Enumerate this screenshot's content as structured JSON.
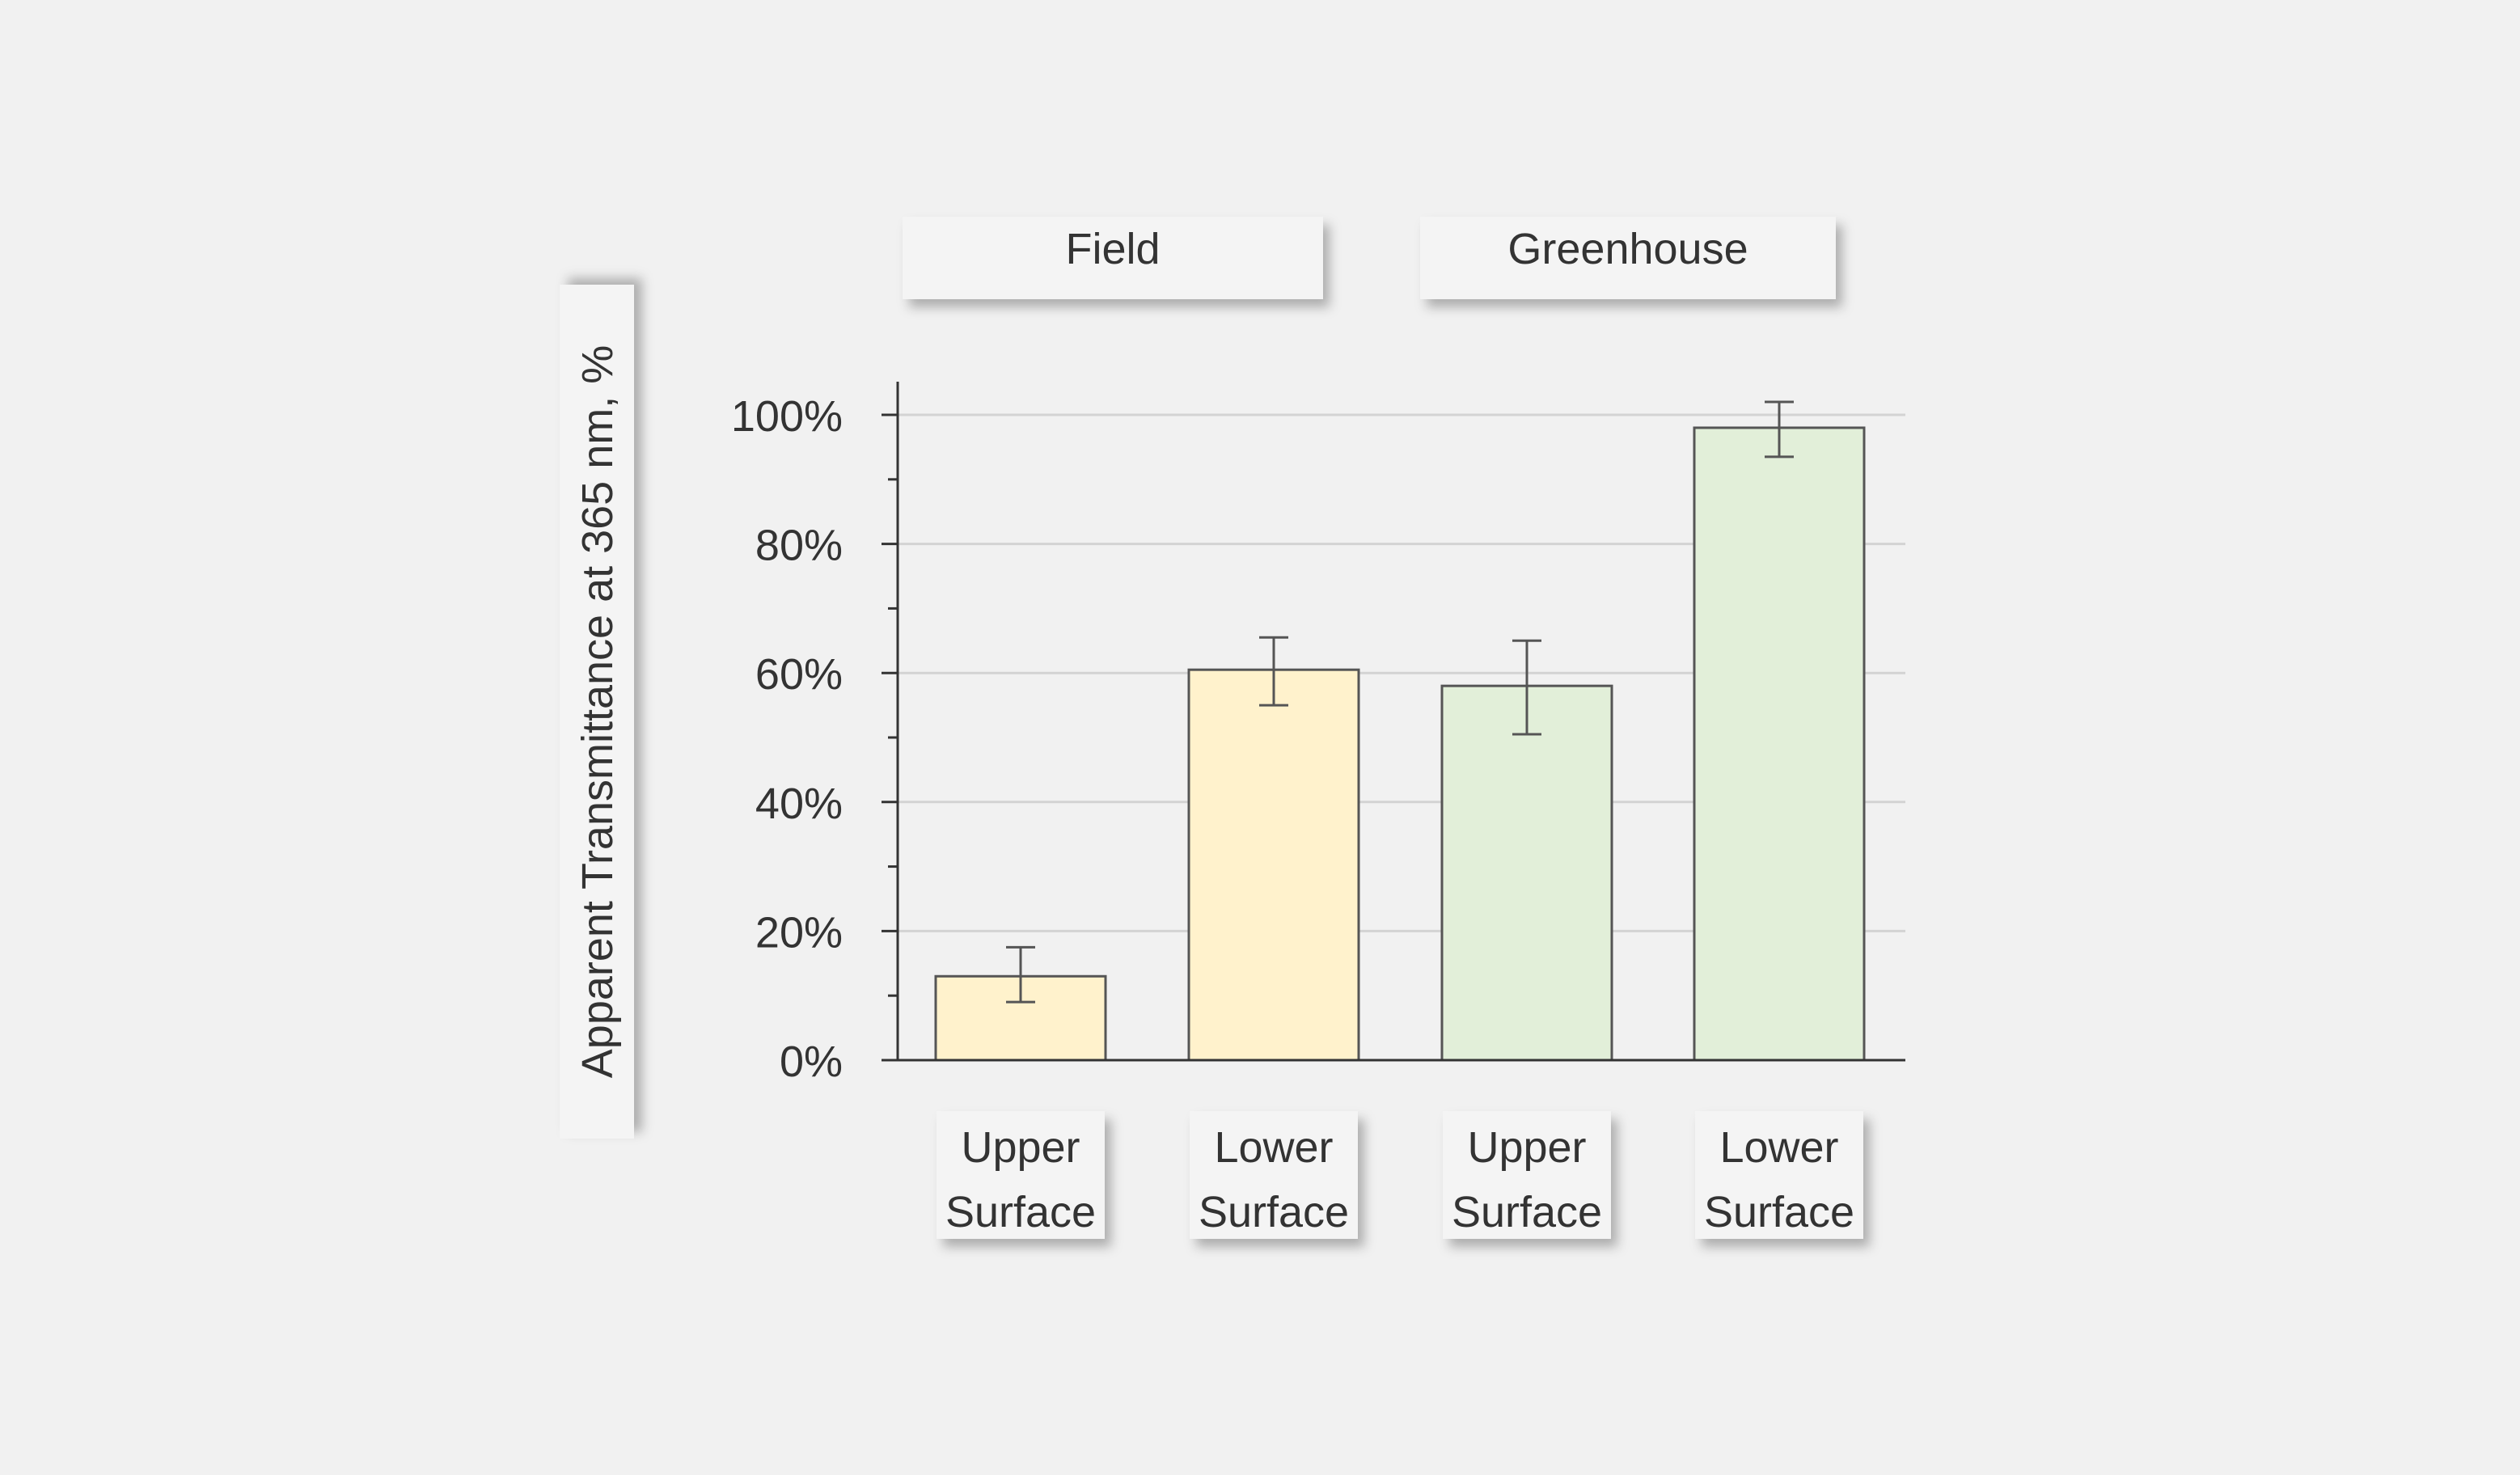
{
  "chart_data": {
    "type": "bar",
    "ylabel": "Apparent Transmittance at 365 nm, %",
    "ylim": [
      0,
      100
    ],
    "yticks": [
      "0%",
      "20%",
      "40%",
      "60%",
      "80%",
      "100%"
    ],
    "grid": true,
    "groups": [
      {
        "name": "Field",
        "color": "#fff2cc",
        "categories": [
          "Upper Surface",
          "Lower Surface"
        ]
      },
      {
        "name": "Greenhouse",
        "color": "#e2efd9",
        "categories": [
          "Upper Surface",
          "Lower Surface"
        ]
      }
    ],
    "bars": [
      {
        "group": "Field",
        "category_lines": [
          "Upper",
          "Surface"
        ],
        "value": 13,
        "err_low": 9,
        "err_high": 17.5
      },
      {
        "group": "Field",
        "category_lines": [
          "Lower",
          "Surface"
        ],
        "value": 60.5,
        "err_low": 55,
        "err_high": 65.5
      },
      {
        "group": "Greenhouse",
        "category_lines": [
          "Upper",
          "Surface"
        ],
        "value": 58,
        "err_low": 50.5,
        "err_high": 65
      },
      {
        "group": "Greenhouse",
        "category_lines": [
          "Lower",
          "Surface"
        ],
        "value": 98,
        "err_low": 93.5,
        "err_high": 102
      }
    ]
  }
}
